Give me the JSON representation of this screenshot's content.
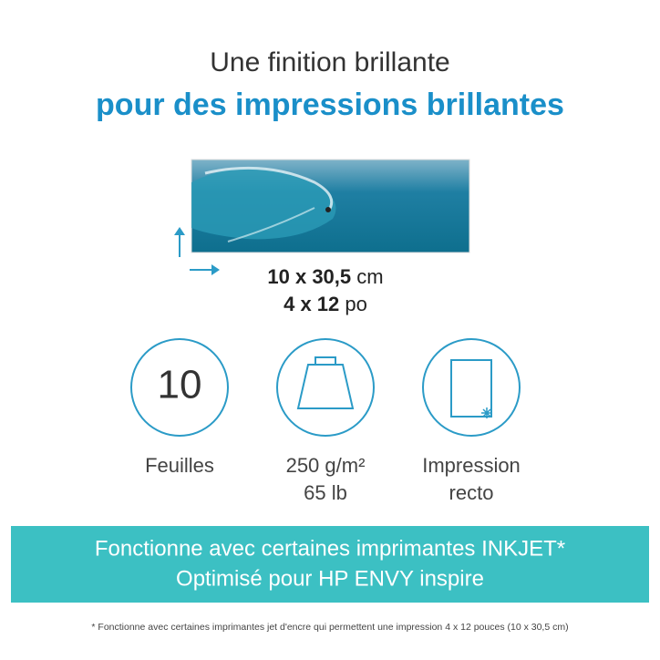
{
  "header": {
    "title_line1": "Une finition brillante",
    "title_line2": "pour des impressions brillantes"
  },
  "size": {
    "cm_value": "10 x 30,5",
    "cm_unit": "cm",
    "in_value": "4 x 12",
    "in_unit": "po"
  },
  "features": [
    {
      "icon_text": "10",
      "lines": [
        "Feuilles"
      ]
    },
    {
      "lines": [
        "250 g/m²",
        "65 lb"
      ]
    },
    {
      "lines": [
        "Impression",
        "recto"
      ]
    }
  ],
  "banner": {
    "line1": "Fonctionne avec certaines imprimantes INKJET*",
    "line2": "Optimisé pour HP ENVY inspire"
  },
  "footnote": "* Fonctionne avec certaines imprimantes jet d'encre qui permettent une impression 4 x 12 pouces (10 x 30,5 cm)"
}
